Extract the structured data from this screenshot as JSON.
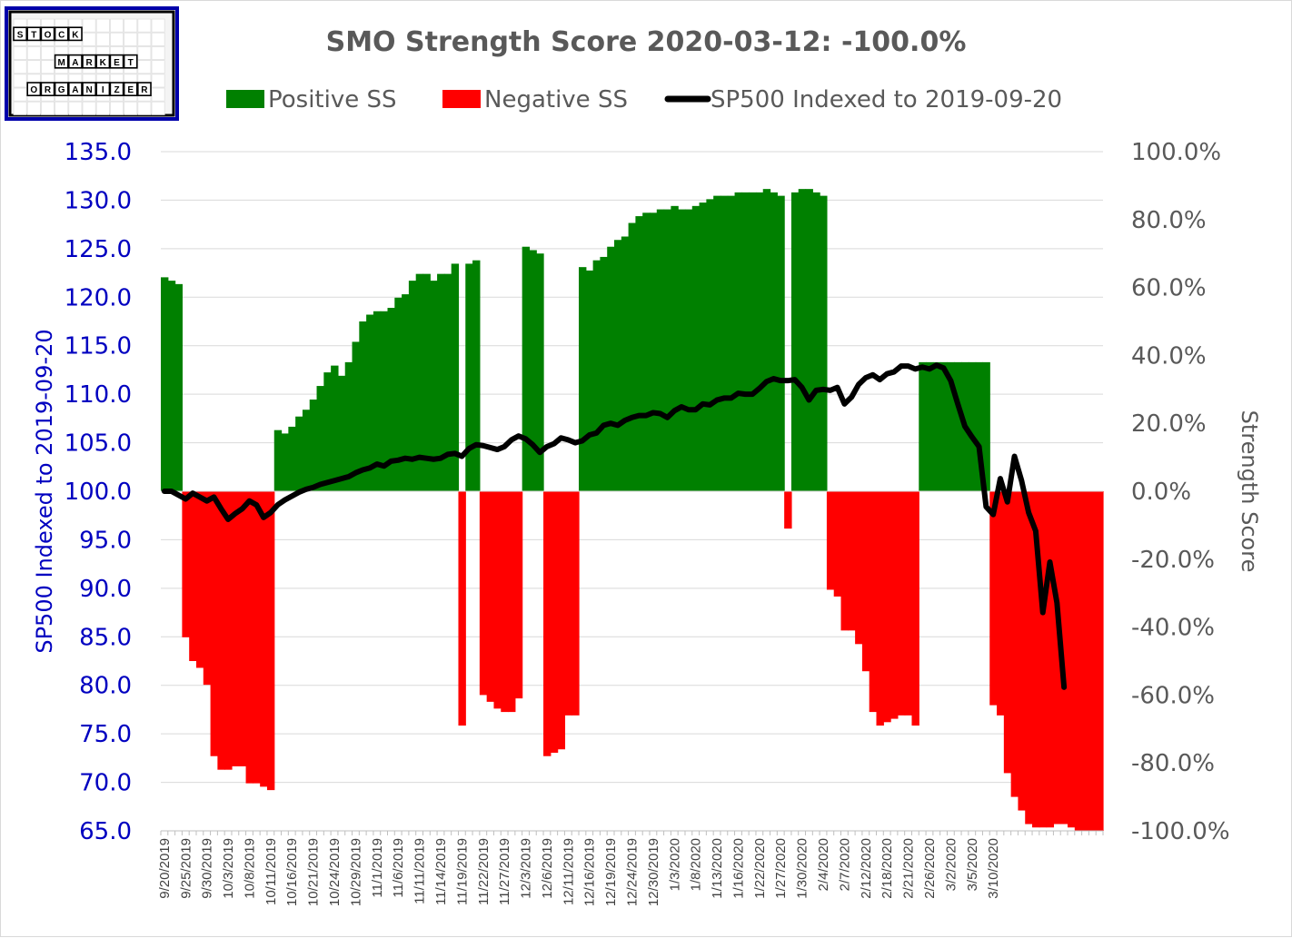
{
  "logo": {
    "word1": [
      "S",
      "T",
      "O",
      "C",
      "K"
    ],
    "word2": [
      "M",
      "A",
      "R",
      "K",
      "E",
      "T"
    ],
    "word3": [
      "O",
      "R",
      "G",
      "A",
      "N",
      "I",
      "Z",
      "E",
      "R"
    ]
  },
  "chart_data": {
    "type": "bar",
    "title": "SMO Strength Score 2020-03-12: -100.0%",
    "legend": [
      {
        "label": "Positive SS",
        "color": "#008000",
        "kind": "bar"
      },
      {
        "label": "Negative SS",
        "color": "#ff0000",
        "kind": "bar"
      },
      {
        "label": "SP500 Indexed to 2019-09-20",
        "color": "#000000",
        "kind": "line"
      }
    ],
    "legend_position": "top",
    "y_left": {
      "label": "SP500 Indexed to 2019-09-20",
      "min": 65,
      "max": 135,
      "step": 5,
      "ticks": [
        "65.0",
        "70.0",
        "75.0",
        "80.0",
        "85.0",
        "90.0",
        "95.0",
        "100.0",
        "105.0",
        "110.0",
        "115.0",
        "120.0",
        "125.0",
        "130.0",
        "135.0"
      ]
    },
    "y_right": {
      "label": "Strength Score",
      "min": -100,
      "max": 100,
      "step": 20,
      "ticks": [
        "-100.0%",
        "-80.0%",
        "-60.0%",
        "-40.0%",
        "-20.0%",
        "0.0%",
        "20.0%",
        "40.0%",
        "60.0%",
        "80.0%",
        "100.0%"
      ]
    },
    "grid": true,
    "x_tick_labels": [
      "9/20/2019",
      "9/25/2019",
      "9/30/2019",
      "10/3/2019",
      "10/8/2019",
      "10/11/2019",
      "10/16/2019",
      "10/21/2019",
      "10/24/2019",
      "10/29/2019",
      "11/1/2019",
      "11/6/2019",
      "11/11/2019",
      "11/14/2019",
      "11/19/2019",
      "11/22/2019",
      "11/27/2019",
      "12/3/2019",
      "12/6/2019",
      "12/11/2019",
      "12/16/2019",
      "12/19/2019",
      "12/24/2019",
      "12/30/2019",
      "1/3/2020",
      "1/8/2020",
      "1/13/2020",
      "1/16/2020",
      "1/22/2020",
      "1/27/2020",
      "1/30/2020",
      "2/4/2020",
      "2/7/2020",
      "2/12/2020",
      "2/18/2020",
      "2/21/2020",
      "2/26/2020",
      "3/2/2020",
      "3/5/2020",
      "3/10/2020"
    ],
    "positive_color": "#008000",
    "negative_color": "#ff0000",
    "strength_score": [
      63,
      62,
      61,
      -43,
      -50,
      -52,
      -57,
      -78,
      -82,
      -82,
      -81,
      -81,
      -86,
      -86,
      -87,
      -88,
      18,
      17,
      19,
      22,
      24,
      27,
      31,
      35,
      37,
      34,
      38,
      44,
      50,
      52,
      53,
      53,
      54,
      57,
      58,
      62,
      64,
      64,
      62,
      64,
      64,
      67,
      -69,
      67,
      68,
      -60,
      -62,
      -64,
      -65,
      -65,
      -61,
      72,
      71,
      70,
      -78,
      -77,
      -76,
      -66,
      -66,
      66,
      65,
      68,
      69,
      72,
      74,
      75,
      79,
      81,
      82,
      82,
      83,
      83,
      84,
      83,
      83,
      84,
      85,
      86,
      87,
      87,
      87,
      88,
      88,
      88,
      88,
      89,
      88,
      87,
      -11,
      88,
      89,
      89,
      88,
      87,
      -29,
      -31,
      -41,
      -41,
      -45,
      -53,
      -65,
      -69,
      -68,
      -67,
      -66,
      -66,
      -69,
      38,
      38,
      38,
      38,
      38,
      38,
      38,
      38,
      38,
      38,
      -63,
      -66,
      -83,
      -90,
      -94,
      -98,
      -99,
      -99,
      -99,
      -98,
      -98,
      -99,
      -100,
      -100,
      -100,
      -100
    ],
    "sp500_indexed": [
      100,
      100,
      99.6,
      99.2,
      99.8,
      99.4,
      99.0,
      99.4,
      98.2,
      97.1,
      97.7,
      98.2,
      99.0,
      98.6,
      97.3,
      97.8,
      98.6,
      99.1,
      99.5,
      99.9,
      100.2,
      100.4,
      100.7,
      100.9,
      101.1,
      101.3,
      101.5,
      101.9,
      102.2,
      102.4,
      102.8,
      102.6,
      103.1,
      103.2,
      103.4,
      103.3,
      103.5,
      103.4,
      103.3,
      103.4,
      103.8,
      103.9,
      103.6,
      104.4,
      104.8,
      104.7,
      104.5,
      104.3,
      104.6,
      105.3,
      105.7,
      105.4,
      104.8,
      104.0,
      104.6,
      104.9,
      105.5,
      105.3,
      105.0,
      105.2,
      105.8,
      106.0,
      106.8,
      107.0,
      106.8,
      107.3,
      107.6,
      107.8,
      107.8,
      108.1,
      108.0,
      107.6,
      108.3,
      108.7,
      108.4,
      108.4,
      109.0,
      108.9,
      109.4,
      109.6,
      109.6,
      110.1,
      110.0,
      110.0,
      110.6,
      111.3,
      111.6,
      111.4,
      111.4,
      111.5,
      110.7,
      109.4,
      110.4,
      110.5,
      110.4,
      110.7,
      109.0,
      109.7,
      111.0,
      111.7,
      112.0,
      111.5,
      112.1,
      112.3,
      112.9,
      112.9,
      112.6,
      112.8,
      112.6,
      113.0,
      112.7,
      111.4,
      109.0,
      106.7,
      105.6,
      104.6,
      98.4,
      97.6,
      101.3,
      98.9,
      103.6,
      101.1,
      97.8,
      95.9,
      87.5,
      92.7,
      88.5,
      79.8
    ],
    "x_labels_every": 3
  }
}
